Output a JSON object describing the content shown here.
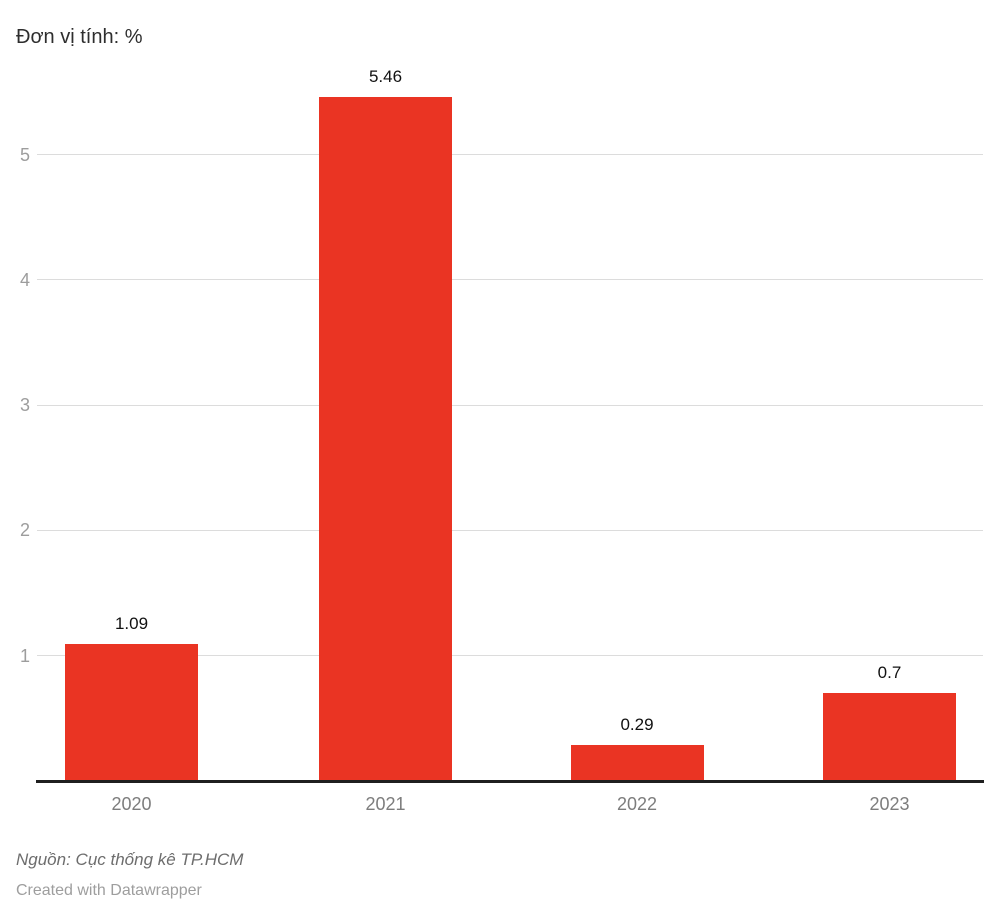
{
  "header": {
    "title": "Đơn vị tính: %"
  },
  "footer": {
    "source": "Nguồn: Cục thống kê TP.HCM",
    "credit": "Created with Datawrapper"
  },
  "colors": {
    "bar": "#ea3423",
    "grid": "#dcdcdc",
    "axis": "#1f1f1f",
    "value_label": "#111111",
    "tick_label": "#9d9d9d",
    "category_label": "#7d7d7d"
  },
  "chart_data": {
    "type": "bar",
    "title": "Đơn vị tính: %",
    "categories": [
      "2020",
      "2021",
      "2022",
      "2023"
    ],
    "values": [
      1.09,
      5.46,
      0.29,
      0.7
    ],
    "value_labels": [
      "1.09",
      "5.46",
      "0.29",
      "0.7"
    ],
    "xlabel": "",
    "ylabel": "",
    "y_ticks": [
      1,
      2,
      3,
      4,
      5
    ],
    "ylim": [
      0,
      5.6
    ],
    "grid": true,
    "legend": "none",
    "source": "Nguồn: Cục thống kê TP.HCM",
    "credit": "Created with Datawrapper"
  }
}
